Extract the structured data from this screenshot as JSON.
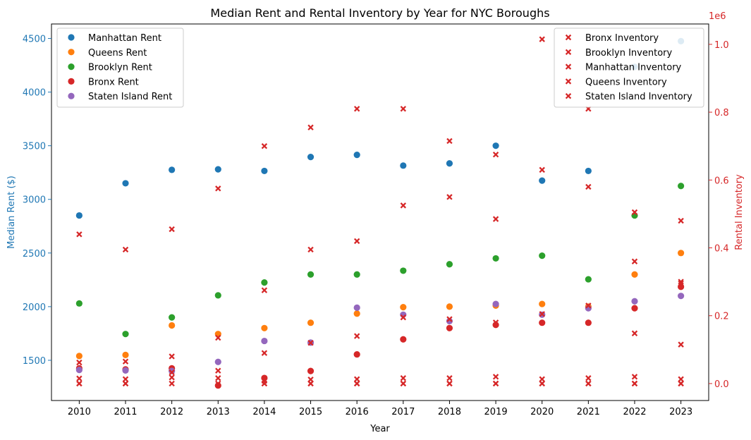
{
  "chart_data": {
    "type": "scatter",
    "title": "Median Rent and Rental Inventory by Year for NYC Boroughs",
    "xlabel": "Year",
    "ylabel_left": "Median Rent ($)",
    "ylabel_right": "Rental Inventory",
    "right_axis_multiplier": "1e6",
    "x": [
      2010,
      2011,
      2012,
      2013,
      2014,
      2015,
      2016,
      2017,
      2018,
      2019,
      2020,
      2021,
      2022,
      2023
    ],
    "ylim_left": [
      1125,
      4635
    ],
    "yticks_left": [
      "1500",
      "2000",
      "2500",
      "3000",
      "3500",
      "4000",
      "4500"
    ],
    "ylim_right": [
      -0.05,
      1.06
    ],
    "yticks_right": [
      "0.0",
      "0.2",
      "0.4",
      "0.6",
      "0.8",
      "1.0"
    ],
    "grid": false,
    "left_axis_color": "#1f77b4",
    "right_axis_color": "#d62728",
    "legend_left_position": "upper-left",
    "legend_right_position": "upper-right",
    "rent_series": [
      {
        "name": "Manhattan Rent",
        "color": "#1f77b4",
        "values": [
          2850,
          3150,
          3275,
          3280,
          3265,
          3395,
          3415,
          3315,
          3335,
          3500,
          3175,
          3265,
          4235,
          4475
        ]
      },
      {
        "name": "Queens Rent",
        "color": "#ff7f0e",
        "values": [
          1540,
          1550,
          1825,
          1745,
          1800,
          1850,
          1935,
          1995,
          2000,
          2010,
          2025,
          2000,
          2300,
          2500
        ]
      },
      {
        "name": "Brooklyn Rent",
        "color": "#2ca02c",
        "values": [
          2030,
          1745,
          1900,
          2105,
          2225,
          2300,
          2300,
          2335,
          2395,
          2450,
          2475,
          2255,
          2850,
          3125
        ]
      },
      {
        "name": "Bronx Rent",
        "color": "#d62728",
        "values": [
          1425,
          1415,
          1425,
          1265,
          1335,
          1400,
          1555,
          1695,
          1800,
          1830,
          1850,
          1850,
          1985,
          2185
        ]
      },
      {
        "name": "Staten Island Rent",
        "color": "#9467bd",
        "values": [
          1410,
          1405,
          1400,
          1485,
          1680,
          1665,
          1990,
          1925,
          1865,
          2025,
          1925,
          1985,
          2050,
          2100
        ]
      }
    ],
    "inventory_series": [
      {
        "name": "Bronx Inventory",
        "color": "#d62728",
        "values": [
          0.015,
          0.013,
          0.018,
          0.016,
          0.008,
          0.012,
          0.013,
          0.016,
          0.016,
          0.02,
          0.013,
          0.016,
          0.02,
          0.013
        ]
      },
      {
        "name": "Brooklyn Inventory",
        "color": "#d62728",
        "values": [
          0.44,
          0.395,
          0.455,
          0.575,
          0.275,
          0.395,
          0.42,
          0.525,
          0.55,
          0.485,
          0.63,
          0.58,
          0.505,
          0.48
        ]
      },
      {
        "name": "Manhattan Inventory",
        "color": "#d62728",
        "values": [
          0.062,
          0.065,
          0.08,
          0.135,
          0.09,
          0.12,
          0.14,
          0.195,
          0.19,
          0.18,
          0.205,
          0.23,
          0.36,
          0.295
        ]
      },
      {
        "name": "Queens Inventory",
        "color": "#d62728",
        "values": [
          0.0,
          0.0,
          0.033,
          0.038,
          0.0,
          0.0,
          0.0,
          0.0,
          0.0,
          0.0,
          0.0,
          0.0,
          0.0,
          0.0
        ]
      },
      {
        "name": "Staten Island Inventory",
        "color": "#d62728",
        "values": [
          0.0,
          0.0,
          0.0,
          0.0,
          0.0,
          0.0,
          0.0,
          0.0,
          0.0,
          0.0,
          0.0,
          0.0,
          0.0,
          0.0
        ]
      }
    ],
    "extra_inventory_points": [
      {
        "x": 2014,
        "value": 0.7
      },
      {
        "x": 2015,
        "value": 0.755
      },
      {
        "x": 2016,
        "value": 0.81
      },
      {
        "x": 2017,
        "value": 0.81
      },
      {
        "x": 2018,
        "value": 0.715
      },
      {
        "x": 2019,
        "value": 0.675
      },
      {
        "x": 2020,
        "value": 1.015
      },
      {
        "x": 2021,
        "value": 0.81
      },
      {
        "x": 2022,
        "value": 0.148
      },
      {
        "x": 2023,
        "value": 0.115
      },
      {
        "x": 2023,
        "value": 0.3
      }
    ]
  }
}
